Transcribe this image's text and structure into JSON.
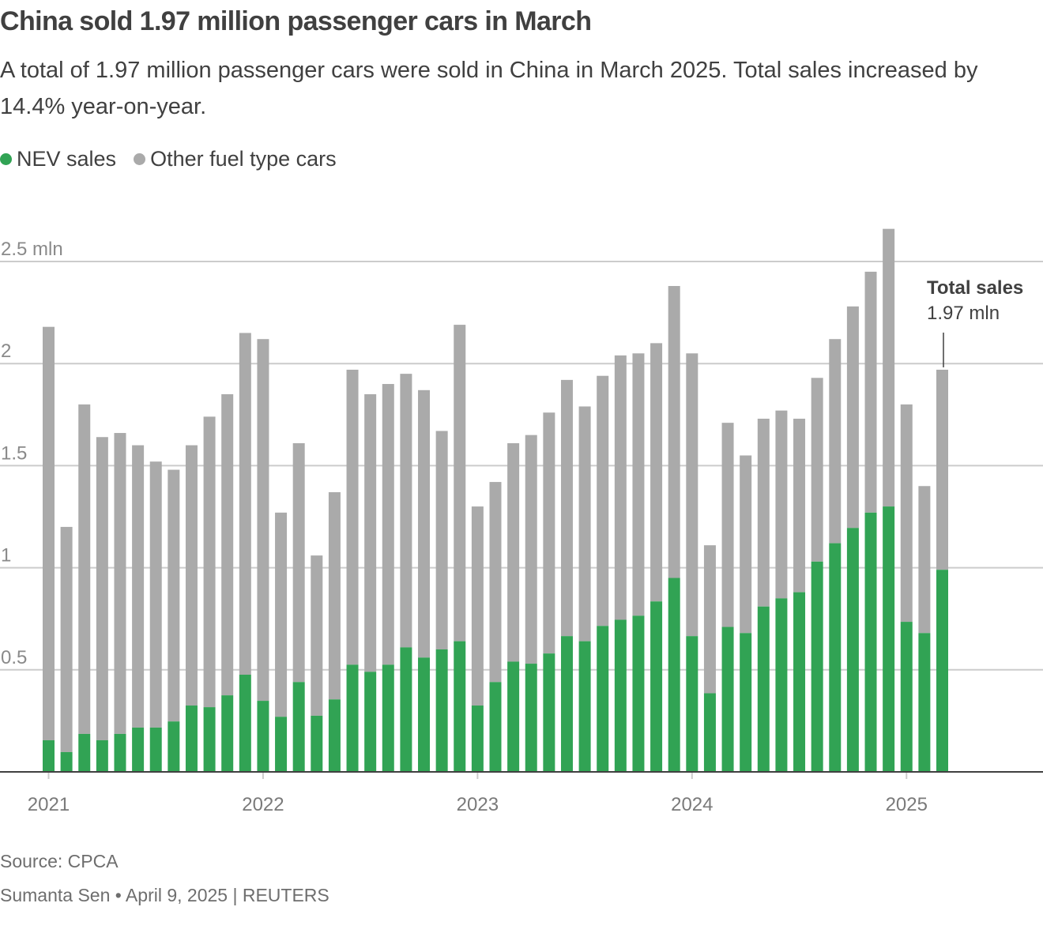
{
  "header": {
    "title": "China sold 1.97 million passenger cars in March",
    "subtitle": "A total of 1.97 million passenger cars were sold in China in March 2025. Total sales increased by 14.4% year-on-year."
  },
  "footer": {
    "source": "Source: CPCA",
    "credit": "Sumanta Sen • April 9, 2025 | REUTERS"
  },
  "colors": {
    "nev": "#31a354",
    "other": "#aaaaaa",
    "grid": "#cccccc",
    "axis": "#404040",
    "text": "#404040"
  },
  "chart_data": {
    "type": "bar",
    "stacked": true,
    "title": "China sold 1.97 million passenger cars in March",
    "xlabel": "",
    "ylabel": "",
    "unit": "mln",
    "ylim": [
      0,
      2.5
    ],
    "yticks": [
      {
        "value": 0.5,
        "label": "0.5"
      },
      {
        "value": 1,
        "label": "1"
      },
      {
        "value": 1.5,
        "label": "1.5"
      },
      {
        "value": 2,
        "label": "2"
      },
      {
        "value": 2.5,
        "label": "2.5 mln"
      }
    ],
    "grid": true,
    "legend_position": "top-left",
    "xticks": [
      {
        "index": 0,
        "label": "2021"
      },
      {
        "index": 12,
        "label": "2022"
      },
      {
        "index": 24,
        "label": "2023"
      },
      {
        "index": 36,
        "label": "2024"
      },
      {
        "index": 48,
        "label": "2025"
      }
    ],
    "categories": [
      "2021-01",
      "2021-02",
      "2021-03",
      "2021-04",
      "2021-05",
      "2021-06",
      "2021-07",
      "2021-08",
      "2021-09",
      "2021-10",
      "2021-11",
      "2021-12",
      "2022-01",
      "2022-02",
      "2022-03",
      "2022-04",
      "2022-05",
      "2022-06",
      "2022-07",
      "2022-08",
      "2022-09",
      "2022-10",
      "2022-11",
      "2022-12",
      "2023-01",
      "2023-02",
      "2023-03",
      "2023-04",
      "2023-05",
      "2023-06",
      "2023-07",
      "2023-08",
      "2023-09",
      "2023-10",
      "2023-11",
      "2023-12",
      "2024-01",
      "2024-02",
      "2024-03",
      "2024-04",
      "2024-05",
      "2024-06",
      "2024-07",
      "2024-08",
      "2024-09",
      "2024-10",
      "2024-11",
      "2024-12",
      "2025-01",
      "2025-02",
      "2025-03"
    ],
    "series": [
      {
        "name": "NEV sales",
        "color": "#31a354",
        "values": [
          0.155,
          0.097,
          0.186,
          0.155,
          0.186,
          0.217,
          0.217,
          0.247,
          0.325,
          0.317,
          0.375,
          0.476,
          0.348,
          0.27,
          0.44,
          0.275,
          0.355,
          0.525,
          0.49,
          0.525,
          0.61,
          0.56,
          0.6,
          0.64,
          0.325,
          0.44,
          0.54,
          0.53,
          0.58,
          0.665,
          0.64,
          0.715,
          0.745,
          0.765,
          0.835,
          0.95,
          0.665,
          0.385,
          0.71,
          0.68,
          0.81,
          0.85,
          0.88,
          1.03,
          1.12,
          1.195,
          1.27,
          1.3,
          0.735,
          0.68,
          0.99
        ]
      },
      {
        "name": "Other fuel type cars",
        "color": "#aaaaaa",
        "totals": [
          2.18,
          1.2,
          1.8,
          1.64,
          1.66,
          1.6,
          1.52,
          1.48,
          1.6,
          1.74,
          1.85,
          2.15,
          2.12,
          1.27,
          1.61,
          1.06,
          1.37,
          1.97,
          1.85,
          1.9,
          1.95,
          1.87,
          1.67,
          2.19,
          1.3,
          1.42,
          1.61,
          1.65,
          1.76,
          1.92,
          1.79,
          1.94,
          2.04,
          2.05,
          2.1,
          2.38,
          2.05,
          1.11,
          1.71,
          1.55,
          1.73,
          1.77,
          1.73,
          1.93,
          2.12,
          2.28,
          2.45,
          2.66,
          1.8,
          1.4,
          1.97
        ]
      }
    ],
    "annotation": {
      "index": 50,
      "title": "Total sales",
      "value": "1.97 mln"
    }
  }
}
